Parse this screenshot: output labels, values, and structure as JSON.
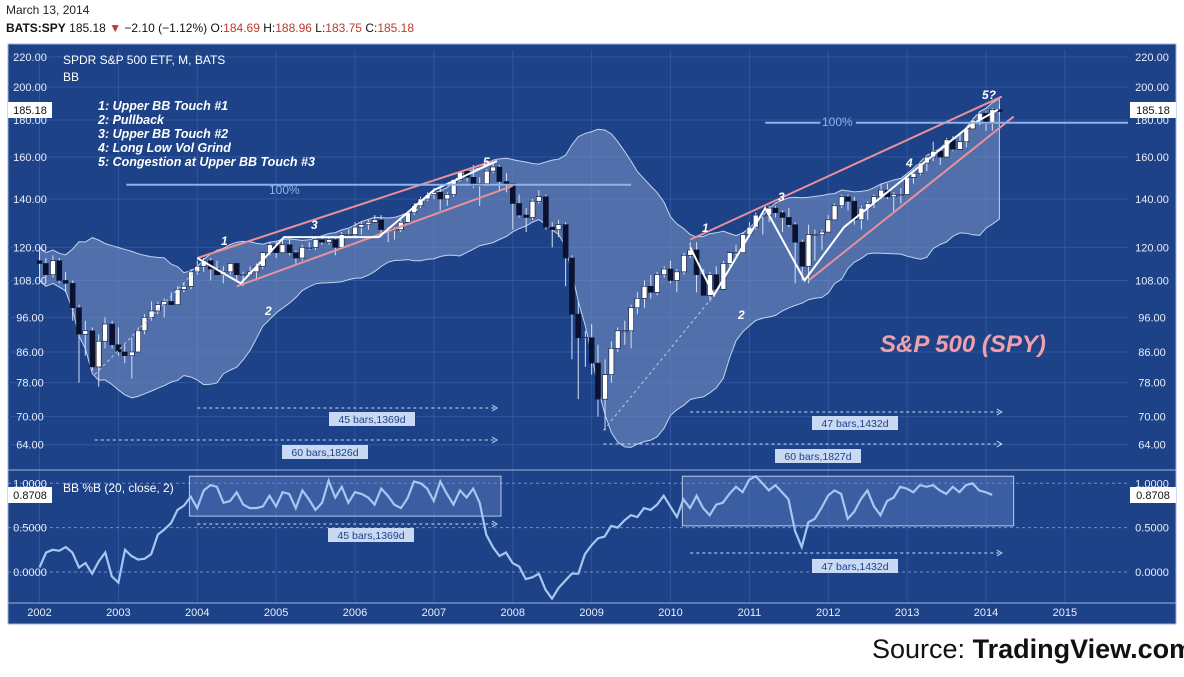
{
  "header": {
    "date": "March 13, 2014",
    "symbol": "BATS:SPY",
    "last": "185.18",
    "change_arrow": "▼",
    "change": "−2.10 (−1.12%)",
    "o_label": "O:",
    "o": "184.69",
    "h_label": "H:",
    "h": "188.96",
    "l_label": "L:",
    "l": "183.75",
    "c_label": "C:",
    "c": "185.18"
  },
  "source": {
    "label": "Source: ",
    "brand": "TradingView.com"
  },
  "colors": {
    "panel_bg": "#1e4287",
    "border": "#9fb3d9",
    "band_fill": "#7a95c8",
    "up_candle": "#ffffff",
    "down_candle": "#0a1230",
    "channel": "#e8919a",
    "pattern": "#ffffff",
    "pctb_line": "#a9c6f2",
    "level_line": "#8fb2ea",
    "title_red": "#f0a0a8"
  },
  "chart_data": [
    {
      "type": "candlestick",
      "title": "SPDR S&P 500 ETF, M, BATS",
      "indicator": "BB",
      "big_label": "S&P 500 (SPY)",
      "y_scale": "log",
      "ylim": [
        60,
        225
      ],
      "y_ticks": [
        "220.00",
        "200.00",
        "180.00",
        "160.00",
        "140.00",
        "120.00",
        "108.00",
        "96.00",
        "86.00",
        "78.00",
        "70.00",
        "64.00"
      ],
      "last_price_label": "185.18",
      "x_labels": [
        "2002",
        "2003",
        "2004",
        "2005",
        "2006",
        "2007",
        "2008",
        "2009",
        "2010",
        "2011",
        "2012",
        "2013",
        "2014",
        "2015"
      ],
      "legend_notes": [
        "1: Upper BB Touch #1",
        "2: Pullback",
        "3: Upper BB Touch #2",
        "4: Long Low Vol Grind",
        "5: Congestion at Upper BB Touch #3"
      ],
      "annotations": {
        "left_cycle": [
          "1",
          "2",
          "3",
          "4",
          "5"
        ],
        "right_cycle": [
          "1",
          "2",
          "3",
          "4",
          "5?"
        ],
        "level_label": "100%",
        "ranges": [
          "45 bars,1369d",
          "60 bars,1826d",
          "47 bars,1432d",
          "60 bars,1827d"
        ]
      },
      "ohlc_monthly": [
        [
          2002.0,
          115,
          118,
          112,
          114
        ],
        [
          2002.08,
          114,
          116,
          109,
          110
        ],
        [
          2002.17,
          110,
          117,
          109,
          115
        ],
        [
          2002.25,
          115,
          116,
          107,
          108
        ],
        [
          2002.33,
          108,
          111,
          104,
          107
        ],
        [
          2002.42,
          107,
          108,
          95,
          99
        ],
        [
          2002.5,
          99,
          100,
          78,
          91
        ],
        [
          2002.58,
          91,
          95,
          85,
          92
        ],
        [
          2002.67,
          92,
          93,
          81,
          82
        ],
        [
          2002.75,
          82,
          91,
          77,
          89
        ],
        [
          2002.83,
          89,
          96,
          87,
          94
        ],
        [
          2002.92,
          94,
          95,
          87,
          88
        ],
        [
          2003.0,
          88,
          93,
          85,
          86
        ],
        [
          2003.08,
          86,
          88,
          83,
          85
        ],
        [
          2003.17,
          85,
          90,
          79,
          86
        ],
        [
          2003.25,
          86,
          93,
          86,
          92
        ],
        [
          2003.33,
          92,
          97,
          91,
          96
        ],
        [
          2003.42,
          96,
          101,
          95,
          98
        ],
        [
          2003.5,
          98,
          101,
          97,
          100
        ],
        [
          2003.58,
          100,
          102,
          96,
          101
        ],
        [
          2003.67,
          101,
          104,
          100,
          100
        ],
        [
          2003.75,
          100,
          106,
          100,
          105
        ],
        [
          2003.83,
          105,
          107,
          104,
          106
        ],
        [
          2003.92,
          106,
          112,
          105,
          111
        ],
        [
          2004.0,
          111,
          115,
          110,
          113
        ],
        [
          2004.08,
          113,
          116,
          111,
          115
        ],
        [
          2004.17,
          115,
          116,
          108,
          112
        ],
        [
          2004.25,
          112,
          115,
          110,
          110
        ],
        [
          2004.33,
          110,
          113,
          107,
          111
        ],
        [
          2004.42,
          111,
          114,
          110,
          114
        ],
        [
          2004.5,
          114,
          114,
          108,
          110
        ],
        [
          2004.58,
          110,
          111,
          106,
          110
        ],
        [
          2004.67,
          110,
          113,
          110,
          111
        ],
        [
          2004.75,
          111,
          114,
          108,
          113
        ],
        [
          2004.83,
          113,
          118,
          112,
          118
        ],
        [
          2004.92,
          118,
          122,
          117,
          121
        ],
        [
          2005.0,
          121,
          122,
          116,
          118
        ],
        [
          2005.08,
          118,
          123,
          118,
          121
        ],
        [
          2005.17,
          121,
          123,
          117,
          118
        ],
        [
          2005.25,
          118,
          119,
          114,
          116
        ],
        [
          2005.33,
          116,
          121,
          115,
          120
        ],
        [
          2005.42,
          120,
          122,
          119,
          120
        ],
        [
          2005.5,
          120,
          124,
          119,
          123
        ],
        [
          2005.58,
          123,
          124,
          121,
          122
        ],
        [
          2005.67,
          122,
          124,
          121,
          123
        ],
        [
          2005.75,
          123,
          124,
          117,
          120
        ],
        [
          2005.83,
          120,
          126,
          120,
          125
        ],
        [
          2005.92,
          125,
          127,
          124,
          125
        ],
        [
          2006.0,
          125,
          130,
          124,
          128
        ],
        [
          2006.08,
          128,
          130,
          125,
          129
        ],
        [
          2006.17,
          129,
          131,
          127,
          130
        ],
        [
          2006.25,
          130,
          133,
          130,
          131
        ],
        [
          2006.33,
          131,
          133,
          124,
          127
        ],
        [
          2006.42,
          127,
          128,
          122,
          127
        ],
        [
          2006.5,
          127,
          128,
          123,
          127
        ],
        [
          2006.58,
          127,
          131,
          126,
          130
        ],
        [
          2006.67,
          130,
          134,
          130,
          134
        ],
        [
          2006.75,
          134,
          138,
          133,
          137
        ],
        [
          2006.83,
          137,
          141,
          136,
          140
        ],
        [
          2006.92,
          140,
          143,
          139,
          142
        ],
        [
          2007.0,
          142,
          145,
          140,
          143
        ],
        [
          2007.08,
          143,
          146,
          135,
          140
        ],
        [
          2007.17,
          140,
          143,
          137,
          142
        ],
        [
          2007.25,
          142,
          149,
          141,
          149
        ],
        [
          2007.33,
          149,
          153,
          148,
          153
        ],
        [
          2007.42,
          153,
          154,
          148,
          150
        ],
        [
          2007.5,
          150,
          156,
          145,
          146
        ],
        [
          2007.58,
          146,
          150,
          137,
          147
        ],
        [
          2007.67,
          147,
          154,
          146,
          153
        ],
        [
          2007.75,
          153,
          157,
          152,
          155
        ],
        [
          2007.83,
          155,
          156,
          144,
          148
        ],
        [
          2007.92,
          148,
          152,
          143,
          147
        ],
        [
          2008.0,
          147,
          147,
          127,
          138
        ],
        [
          2008.08,
          138,
          142,
          132,
          133
        ],
        [
          2008.17,
          133,
          136,
          126,
          132
        ],
        [
          2008.25,
          132,
          140,
          131,
          139
        ],
        [
          2008.33,
          139,
          144,
          138,
          141
        ],
        [
          2008.42,
          141,
          142,
          127,
          128
        ],
        [
          2008.5,
          128,
          130,
          120,
          127
        ],
        [
          2008.58,
          127,
          131,
          124,
          129
        ],
        [
          2008.67,
          129,
          130,
          106,
          116
        ],
        [
          2008.75,
          116,
          117,
          84,
          97
        ],
        [
          2008.83,
          97,
          101,
          74,
          90
        ],
        [
          2008.92,
          90,
          92,
          82,
          90
        ],
        [
          2009.0,
          90,
          94,
          80,
          83
        ],
        [
          2009.08,
          83,
          88,
          70,
          74
        ],
        [
          2009.17,
          74,
          84,
          67,
          80
        ],
        [
          2009.25,
          80,
          89,
          78,
          87
        ],
        [
          2009.33,
          87,
          93,
          86,
          92
        ],
        [
          2009.42,
          92,
          95,
          88,
          92
        ],
        [
          2009.5,
          92,
          100,
          87,
          99
        ],
        [
          2009.58,
          99,
          104,
          97,
          102
        ],
        [
          2009.67,
          102,
          108,
          99,
          106
        ],
        [
          2009.75,
          106,
          110,
          102,
          104
        ],
        [
          2009.83,
          104,
          111,
          103,
          110
        ],
        [
          2009.92,
          110,
          113,
          109,
          112
        ],
        [
          2010.0,
          112,
          115,
          107,
          108
        ],
        [
          2010.08,
          108,
          112,
          104,
          111
        ],
        [
          2010.17,
          111,
          118,
          110,
          117
        ],
        [
          2010.25,
          117,
          122,
          116,
          119
        ],
        [
          2010.33,
          119,
          122,
          104,
          110
        ],
        [
          2010.42,
          110,
          112,
          103,
          103
        ],
        [
          2010.5,
          103,
          111,
          101,
          110
        ],
        [
          2010.58,
          110,
          113,
          104,
          105
        ],
        [
          2010.67,
          105,
          115,
          105,
          114
        ],
        [
          2010.75,
          114,
          118,
          113,
          118
        ],
        [
          2010.83,
          118,
          121,
          117,
          118
        ],
        [
          2010.92,
          118,
          126,
          118,
          125
        ],
        [
          2011.0,
          125,
          130,
          124,
          128
        ],
        [
          2011.08,
          128,
          134,
          127,
          133
        ],
        [
          2011.17,
          133,
          134,
          125,
          133
        ],
        [
          2011.25,
          133,
          137,
          130,
          136
        ],
        [
          2011.33,
          136,
          137,
          132,
          134
        ],
        [
          2011.42,
          134,
          135,
          126,
          132
        ],
        [
          2011.5,
          132,
          136,
          128,
          129
        ],
        [
          2011.58,
          129,
          130,
          107,
          122
        ],
        [
          2011.67,
          122,
          123,
          108,
          113
        ],
        [
          2011.75,
          113,
          129,
          107,
          125
        ],
        [
          2011.83,
          125,
          127,
          115,
          125
        ],
        [
          2011.92,
          125,
          127,
          119,
          126
        ],
        [
          2012.0,
          126,
          133,
          126,
          131
        ],
        [
          2012.08,
          131,
          138,
          131,
          137
        ],
        [
          2012.17,
          137,
          142,
          136,
          141
        ],
        [
          2012.25,
          141,
          142,
          135,
          139
        ],
        [
          2012.33,
          139,
          141,
          129,
          131
        ],
        [
          2012.42,
          131,
          137,
          127,
          136
        ],
        [
          2012.5,
          136,
          139,
          131,
          138
        ],
        [
          2012.58,
          138,
          142,
          136,
          141
        ],
        [
          2012.67,
          141,
          147,
          140,
          144
        ],
        [
          2012.75,
          144,
          147,
          140,
          141
        ],
        [
          2012.83,
          141,
          143,
          134,
          142
        ],
        [
          2012.92,
          142,
          145,
          138,
          142
        ],
        [
          2013.0,
          142,
          151,
          142,
          150
        ],
        [
          2013.08,
          150,
          153,
          147,
          152
        ],
        [
          2013.17,
          152,
          157,
          151,
          157
        ],
        [
          2013.25,
          157,
          160,
          153,
          160
        ],
        [
          2013.33,
          160,
          168,
          158,
          163
        ],
        [
          2013.42,
          163,
          165,
          156,
          160
        ],
        [
          2013.5,
          160,
          170,
          160,
          169
        ],
        [
          2013.58,
          169,
          171,
          163,
          164
        ],
        [
          2013.67,
          164,
          173,
          164,
          168
        ],
        [
          2013.75,
          168,
          176,
          165,
          175
        ],
        [
          2013.83,
          175,
          181,
          175,
          180
        ],
        [
          2013.92,
          180,
          185,
          177,
          184
        ],
        [
          2014.0,
          184,
          185,
          174,
          178
        ],
        [
          2014.08,
          178,
          187,
          174,
          186
        ],
        [
          2014.17,
          186,
          189,
          183,
          185
        ]
      ]
    },
    {
      "type": "line",
      "title": "BB %B (20, close, 2)",
      "ylim": [
        -0.35,
        1.15
      ],
      "y_ticks": [
        "1.0000",
        "0.5000",
        "0.0000"
      ],
      "last_value_label": "0.8708",
      "ranges": [
        "45 bars,1369d",
        "47 bars,1432d"
      ],
      "series": [
        {
          "x_start": 2002.0,
          "step": 0.0833,
          "values": [
            0.05,
            0.22,
            0.25,
            0.24,
            0.28,
            0.22,
            0.05,
            0.1,
            -0.02,
            0.12,
            0.22,
            -0.05,
            -0.12,
            0.25,
            0.18,
            0.14,
            0.15,
            0.2,
            0.42,
            0.48,
            0.55,
            0.7,
            0.75,
            0.85,
            0.72,
            0.92,
            0.98,
            0.96,
            0.78,
            0.8,
            0.9,
            0.76,
            0.72,
            0.72,
            0.74,
            0.86,
            0.74,
            0.9,
            0.88,
            0.72,
            0.92,
            0.82,
            0.7,
            0.78,
            1.03,
            0.84,
            0.96,
            0.78,
            0.9,
            0.88,
            0.84,
            0.76,
            0.94,
            0.86,
            0.76,
            0.72,
            0.83,
            1.02,
            1.0,
            0.94,
            0.8,
            1.02,
            0.88,
            0.76,
            0.92,
            0.84,
            0.94,
            0.78,
            0.42,
            0.28,
            0.18,
            0.22,
            0.1,
            0.06,
            -0.08,
            -0.06,
            -0.02,
            -0.2,
            -0.3,
            -0.18,
            -0.1,
            -0.02,
            -0.02,
            0.2,
            0.3,
            0.38,
            0.4,
            0.52,
            0.5,
            0.58,
            0.64,
            0.62,
            0.72,
            0.7,
            0.76,
            0.86,
            0.74,
            0.62,
            0.82,
            0.72,
            0.86,
            0.72,
            0.64,
            0.76,
            0.78,
            0.88,
            0.96,
            0.9,
            1.04,
            1.08,
            1.0,
            0.92,
            0.98,
            0.9,
            0.82,
            0.46,
            0.28,
            0.56,
            0.6,
            0.72,
            0.86,
            0.92,
            0.88,
            0.6,
            0.68,
            0.82,
            0.92,
            0.74,
            0.64,
            0.8,
            0.84,
            0.96,
            0.94,
            0.9,
            0.98,
            0.96,
            0.98,
            0.92,
            0.88,
            0.96,
            0.9,
            0.98,
            1.0,
            0.92,
            0.9,
            0.87
          ]
        }
      ]
    }
  ]
}
